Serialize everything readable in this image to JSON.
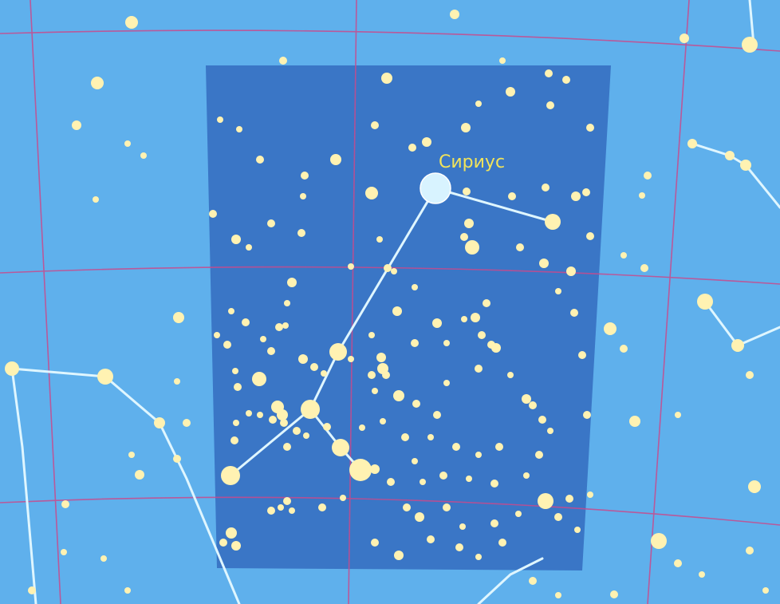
{
  "map": {
    "label": "Сириус"
  },
  "colors": {
    "sky": "#5fb0ec",
    "constellation_region": "#3a76c6",
    "grid": "#c94a8c",
    "star": "#fff2b2",
    "sirius": "#d8f3ff",
    "line": "#dff6ff",
    "label": "#f1e35a"
  },
  "icons": {
    "star": "star-icon",
    "bright_star": "bright-star-icon"
  }
}
